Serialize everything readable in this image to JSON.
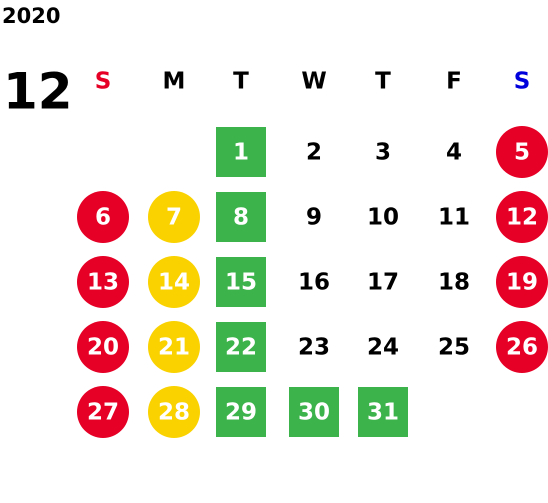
{
  "calendar": {
    "year": "2020",
    "month": "12",
    "weekdays": [
      {
        "text": "S",
        "color": "#e60026"
      },
      {
        "text": "M",
        "color": "#000000"
      },
      {
        "text": "T",
        "color": "#000000"
      },
      {
        "text": "W",
        "color": "#000000"
      },
      {
        "text": "T",
        "color": "#000000"
      },
      {
        "text": "F",
        "color": "#000000"
      },
      {
        "text": "S",
        "color": "#0000dd"
      }
    ],
    "weeks": [
      [
        null,
        null,
        {
          "day": 1,
          "shape": "square",
          "color": "#3cb44b"
        },
        {
          "day": 2
        },
        {
          "day": 3
        },
        {
          "day": 4
        },
        {
          "day": 5,
          "shape": "circle",
          "color": "#e60026"
        }
      ],
      [
        {
          "day": 6,
          "shape": "circle",
          "color": "#e60026"
        },
        {
          "day": 7,
          "shape": "circle",
          "color": "#fad200"
        },
        {
          "day": 8,
          "shape": "square",
          "color": "#3cb44b"
        },
        {
          "day": 9
        },
        {
          "day": 10
        },
        {
          "day": 11
        },
        {
          "day": 12,
          "shape": "circle",
          "color": "#e60026"
        }
      ],
      [
        {
          "day": 13,
          "shape": "circle",
          "color": "#e60026"
        },
        {
          "day": 14,
          "shape": "circle",
          "color": "#fad200"
        },
        {
          "day": 15,
          "shape": "square",
          "color": "#3cb44b"
        },
        {
          "day": 16
        },
        {
          "day": 17
        },
        {
          "day": 18
        },
        {
          "day": 19,
          "shape": "circle",
          "color": "#e60026"
        }
      ],
      [
        {
          "day": 20,
          "shape": "circle",
          "color": "#e60026"
        },
        {
          "day": 21,
          "shape": "circle",
          "color": "#fad200"
        },
        {
          "day": 22,
          "shape": "square",
          "color": "#3cb44b"
        },
        {
          "day": 23
        },
        {
          "day": 24
        },
        {
          "day": 25
        },
        {
          "day": 26,
          "shape": "circle",
          "color": "#e60026"
        }
      ],
      [
        {
          "day": 27,
          "shape": "circle",
          "color": "#e60026"
        },
        {
          "day": 28,
          "shape": "circle",
          "color": "#fad200"
        },
        {
          "day": 29,
          "shape": "square",
          "color": "#3cb44b"
        },
        {
          "day": 30,
          "shape": "square",
          "color": "#3cb44b"
        },
        {
          "day": 31,
          "shape": "square",
          "color": "#3cb44b"
        },
        null,
        null
      ]
    ]
  }
}
